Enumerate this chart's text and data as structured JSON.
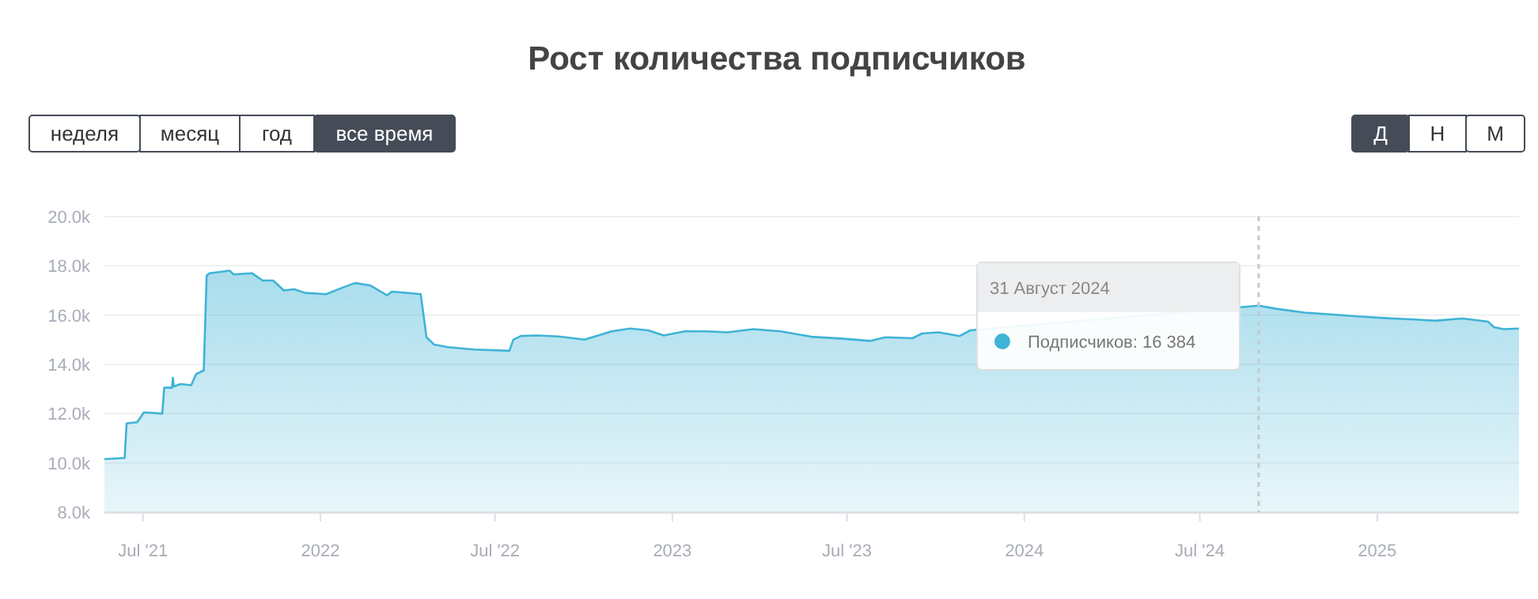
{
  "chart_data": {
    "type": "area",
    "title": "Рост количества подписчиков",
    "x": [
      "2021-05-22",
      "2021-06-12",
      "2021-06-14",
      "2021-06-25",
      "2021-07-02",
      "2021-07-21",
      "2021-07-23",
      "2021-07-31",
      "2021-08-01",
      "2021-08-02",
      "2021-08-09",
      "2021-08-20",
      "2021-08-25",
      "2021-09-02",
      "2021-09-05",
      "2021-09-08",
      "2021-09-29",
      "2021-10-03",
      "2021-10-22",
      "2021-11-02",
      "2021-11-13",
      "2021-11-24",
      "2021-12-05",
      "2021-12-16",
      "2022-01-07",
      "2022-01-23",
      "2022-02-06",
      "2022-02-22",
      "2022-03-11",
      "2022-03-16",
      "2022-04-15",
      "2022-04-21",
      "2022-04-29",
      "2022-05-13",
      "2022-06-09",
      "2022-07-16",
      "2022-07-20",
      "2022-07-28",
      "2022-08-14",
      "2022-09-05",
      "2022-10-02",
      "2022-10-30",
      "2022-11-18",
      "2022-12-07",
      "2022-12-23",
      "2023-01-14",
      "2023-02-05",
      "2023-02-27",
      "2023-03-26",
      "2023-04-23",
      "2023-05-25",
      "2023-06-27",
      "2023-07-25",
      "2023-08-10",
      "2023-09-07",
      "2023-09-17",
      "2023-10-04",
      "2023-10-26",
      "2023-11-06",
      "2024-08-31",
      "2024-09-19",
      "2024-10-17",
      "2024-11-13",
      "2024-12-10",
      "2025-01-07",
      "2025-02-08",
      "2025-03-02",
      "2025-03-30",
      "2025-04-26",
      "2025-05-02",
      "2025-05-12",
      "2025-05-28"
    ],
    "series": [
      {
        "color": "#3fb3d6",
        "values": [
          10150,
          10200,
          11600,
          11650,
          12050,
          12000,
          13050,
          13050,
          13450,
          13100,
          13200,
          13150,
          13600,
          13750,
          17600,
          17700,
          17800,
          17650,
          17700,
          17400,
          17400,
          17000,
          17050,
          16900,
          16850,
          17100,
          17300,
          17200,
          16800,
          16950,
          16850,
          15100,
          14800,
          14700,
          14600,
          14550,
          15000,
          15150,
          15170,
          15130,
          15000,
          15340,
          15450,
          15380,
          15170,
          15340,
          15340,
          15300,
          15430,
          15340,
          15120,
          15040,
          14950,
          15100,
          15060,
          15250,
          15300,
          15150,
          15380,
          16384,
          16250,
          16100,
          16030,
          15950,
          15880,
          15820,
          15770,
          15860,
          15730,
          15510,
          15430,
          15450
        ]
      }
    ],
    "xlim": [
      "2021-05-22",
      "2025-05-28"
    ],
    "xticks": [
      {
        "value": "2021-07-01",
        "label": "Jul '21"
      },
      {
        "value": "2022-01-01",
        "label": "2022"
      },
      {
        "value": "2022-07-01",
        "label": "Jul '22"
      },
      {
        "value": "2023-01-01",
        "label": "2023"
      },
      {
        "value": "2023-07-01",
        "label": "Jul '23"
      },
      {
        "value": "2024-01-01",
        "label": "2024"
      },
      {
        "value": "2024-07-01",
        "label": "Jul '24"
      },
      {
        "value": "2025-01-01",
        "label": "2025"
      }
    ],
    "ylim": [
      8000,
      20000
    ],
    "yticks": [
      {
        "value": 8000,
        "label": "8.0k"
      },
      {
        "value": 10000,
        "label": "10.0k"
      },
      {
        "value": 12000,
        "label": "12.0k"
      },
      {
        "value": 14000,
        "label": "14.0k"
      },
      {
        "value": 16000,
        "label": "16.0k"
      },
      {
        "value": 18000,
        "label": "18.0k"
      },
      {
        "value": 20000,
        "label": "20.0k"
      }
    ],
    "grid": "y",
    "marker": "none",
    "line_style": "solid",
    "ref_lines": [
      {
        "axis": "x",
        "value": "2024-08-31",
        "color": "#c8c8c8",
        "line_style": "dashed"
      }
    ],
    "annotations": [
      "неделя",
      "месяц",
      "год",
      "все время",
      "Д",
      "Н",
      "М",
      "31 Август 2024",
      "Подписчиков: 16 384"
    ]
  }
}
